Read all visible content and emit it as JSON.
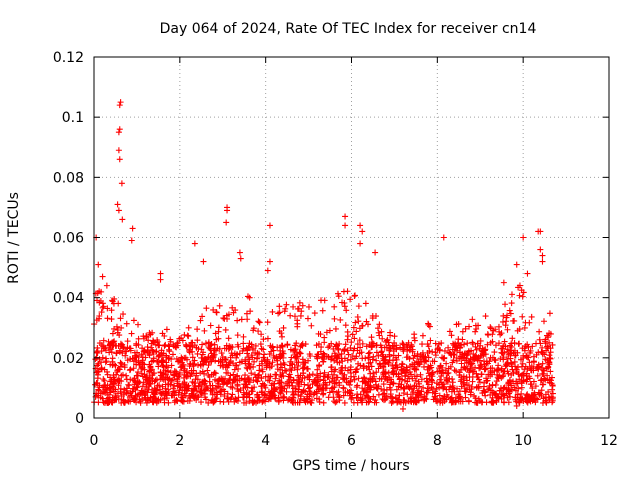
{
  "chart_data": {
    "type": "scatter",
    "title": "Day 064 of 2024, Rate Of TEC Index for receiver cn14",
    "xlabel": "GPS time / hours",
    "ylabel": "ROTI / TECUs",
    "xlim": [
      0,
      12
    ],
    "ylim": [
      0,
      0.12
    ],
    "xticks": [
      0,
      2,
      4,
      6,
      8,
      10,
      12
    ],
    "yticks": [
      0,
      0.02,
      0.04,
      0.06,
      0.08,
      0.1,
      0.12
    ],
    "xtick_labels": [
      "0",
      "2",
      "4",
      "6",
      "8",
      "10",
      "12"
    ],
    "ytick_labels": [
      "0",
      "0.02",
      "0.04",
      "0.06",
      "0.08",
      "0.1",
      "0.12"
    ],
    "grid": true,
    "marker": "+",
    "color": "#ff0000",
    "series": [
      {
        "name": "ROTI",
        "x_range": [
          0,
          10.7
        ],
        "baseline_band": [
          0.005,
          0.025
        ],
        "highlights": [
          {
            "x": 0.62,
            "y": 0.105
          },
          {
            "x": 0.6,
            "y": 0.104
          },
          {
            "x": 0.6,
            "y": 0.096
          },
          {
            "x": 0.58,
            "y": 0.095
          },
          {
            "x": 0.58,
            "y": 0.089
          },
          {
            "x": 0.6,
            "y": 0.086
          },
          {
            "x": 0.65,
            "y": 0.078
          },
          {
            "x": 0.55,
            "y": 0.071
          },
          {
            "x": 0.58,
            "y": 0.069
          },
          {
            "x": 0.66,
            "y": 0.066
          },
          {
            "x": 0.9,
            "y": 0.063
          },
          {
            "x": 0.88,
            "y": 0.059
          },
          {
            "x": 0.05,
            "y": 0.06
          },
          {
            "x": 0.1,
            "y": 0.051
          },
          {
            "x": 0.2,
            "y": 0.047
          },
          {
            "x": 0.3,
            "y": 0.044
          },
          {
            "x": 1.55,
            "y": 0.048
          },
          {
            "x": 1.55,
            "y": 0.046
          },
          {
            "x": 2.35,
            "y": 0.058
          },
          {
            "x": 2.55,
            "y": 0.052
          },
          {
            "x": 3.1,
            "y": 0.07
          },
          {
            "x": 3.1,
            "y": 0.069
          },
          {
            "x": 3.08,
            "y": 0.065
          },
          {
            "x": 3.4,
            "y": 0.055
          },
          {
            "x": 3.42,
            "y": 0.053
          },
          {
            "x": 4.1,
            "y": 0.064
          },
          {
            "x": 4.1,
            "y": 0.052
          },
          {
            "x": 4.05,
            "y": 0.049
          },
          {
            "x": 5.85,
            "y": 0.067
          },
          {
            "x": 5.85,
            "y": 0.064
          },
          {
            "x": 6.2,
            "y": 0.064
          },
          {
            "x": 6.25,
            "y": 0.062
          },
          {
            "x": 6.2,
            "y": 0.058
          },
          {
            "x": 6.55,
            "y": 0.055
          },
          {
            "x": 8.15,
            "y": 0.06
          },
          {
            "x": 10.35,
            "y": 0.062
          },
          {
            "x": 10.4,
            "y": 0.062
          },
          {
            "x": 10.4,
            "y": 0.056
          },
          {
            "x": 10.45,
            "y": 0.054
          },
          {
            "x": 10.45,
            "y": 0.052
          },
          {
            "x": 10.0,
            "y": 0.06
          },
          {
            "x": 9.85,
            "y": 0.051
          },
          {
            "x": 10.1,
            "y": 0.048
          },
          {
            "x": 9.55,
            "y": 0.045
          },
          {
            "x": 7.2,
            "y": 0.003
          },
          {
            "x": 9.85,
            "y": 0.004
          }
        ]
      }
    ]
  }
}
